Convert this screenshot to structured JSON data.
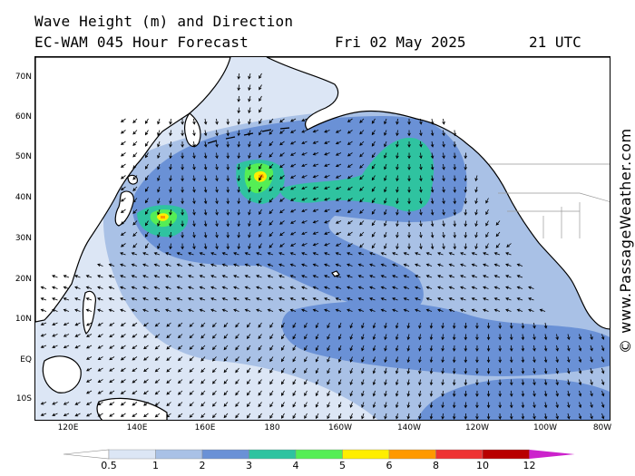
{
  "title": {
    "line1": "Wave Height (m) and Direction",
    "line2": "EC-WAM 045 Hour Forecast",
    "date": "Fri 02 May 2025",
    "time": "21 UTC"
  },
  "credit": "© www.PassageWeather.com",
  "axes": {
    "lat_labels": [
      "70N",
      "60N",
      "50N",
      "40N",
      "30N",
      "20N",
      "10N",
      "EQ",
      "10S"
    ],
    "lon_labels": [
      "120E",
      "140E",
      "160E",
      "180",
      "160W",
      "140W",
      "120W",
      "100W",
      "80W"
    ]
  },
  "legend": {
    "unit": "m",
    "labels": [
      "0.5",
      "1",
      "2",
      "3",
      "4",
      "5",
      "6",
      "8",
      "10",
      "12"
    ],
    "colors": [
      "#ffffff",
      "#dce6f5",
      "#a9c1e6",
      "#6a91d6",
      "#2fc3a0",
      "#55ee55",
      "#ffee00",
      "#ff9900",
      "#ee3333",
      "#b80000",
      "#cc22cc"
    ]
  },
  "palette": {
    "land": "#ffffff",
    "coast": "#000000",
    "borders": "#999999",
    "arrow": "#000000"
  }
}
